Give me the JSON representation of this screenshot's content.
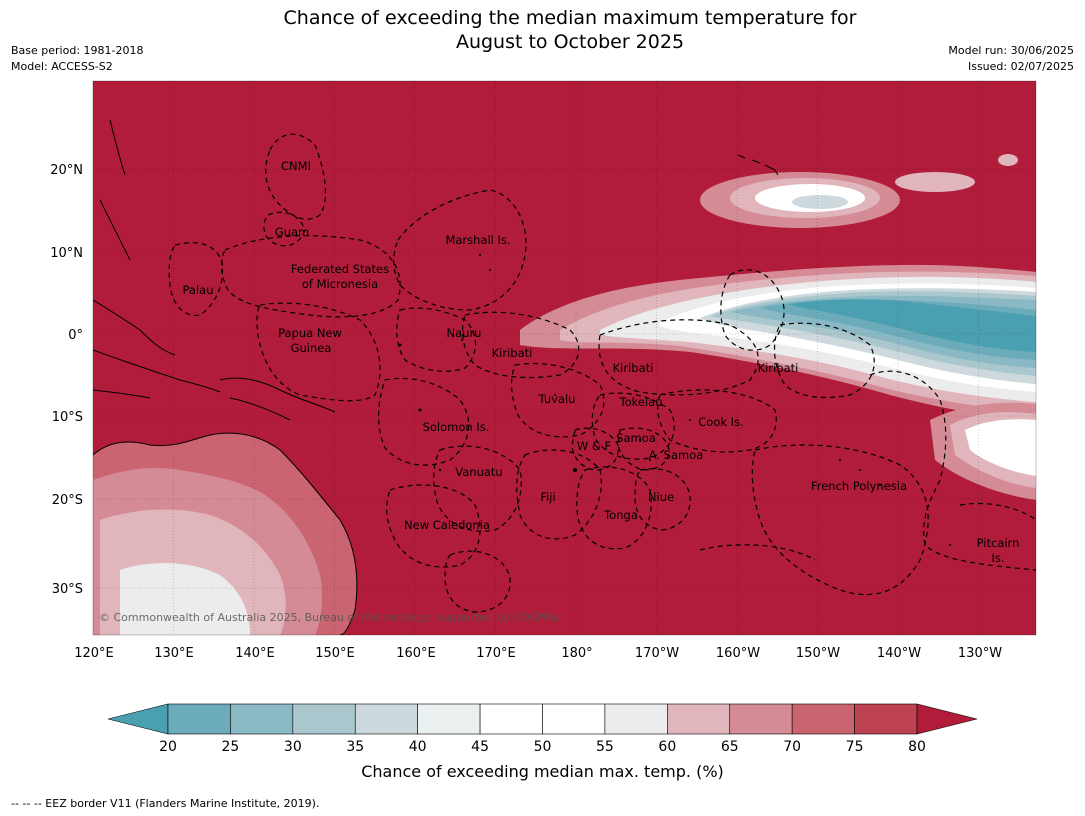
{
  "header": {
    "title_line1": "Chance of exceeding the median maximum temperature for",
    "title_line2": "August to October 2025",
    "base_period": "Base period: 1981-2018",
    "model": "Model: ACCESS-S2",
    "model_run": "Model run: 30/06/2025",
    "issued": "Issued: 02/07/2025"
  },
  "map": {
    "background_color": "#b01c3a",
    "lon_ticks": [
      "120°E",
      "130°E",
      "140°E",
      "150°E",
      "160°E",
      "170°E",
      "180°",
      "170°W",
      "160°W",
      "150°W",
      "140°W",
      "130°W"
    ],
    "lat_ticks": [
      "20°N",
      "10°N",
      "0°",
      "10°S",
      "20°S",
      "30°S"
    ],
    "regions": [
      "CNMI",
      "Guam",
      "Marshall Is.",
      "Federated States",
      "of Micronesia",
      "Palau",
      "Papua New",
      "Guinea",
      "Nauru",
      "Kiribati",
      "Kiribati",
      "Kiribati",
      "Tuvalu",
      "Tokelau",
      "Solomon Is.",
      "Cook Is.",
      "Samoa",
      "W & F",
      "A. Samoa",
      "Vanuatu",
      "Fiji",
      "Niue",
      "Tonga",
      "French Polynesia",
      "New Caledonia",
      "Pitcairn",
      "Is."
    ],
    "copyright": "© Commonwealth of Australia 2025, Bureau of Meteorology, supported by COSPPac"
  },
  "colorbar": {
    "ticks": [
      "20",
      "25",
      "30",
      "35",
      "40",
      "45",
      "50",
      "55",
      "60",
      "65",
      "70",
      "75",
      "80"
    ],
    "colors": [
      "#4aa0b0",
      "#6babba",
      "#8ab8c4",
      "#a9c7cd",
      "#cdd9dc",
      "#ebf1f1",
      "#ffffff",
      "#ffffff",
      "#ececed",
      "#e0b6bc",
      "#d48b95",
      "#c96470",
      "#bd4252",
      "#b01c3a"
    ],
    "label": "Chance of exceeding median max. temp. (%)"
  },
  "footnote": "--  --  -- EEZ border V11 (Flanders Marine Institute, 2019)."
}
